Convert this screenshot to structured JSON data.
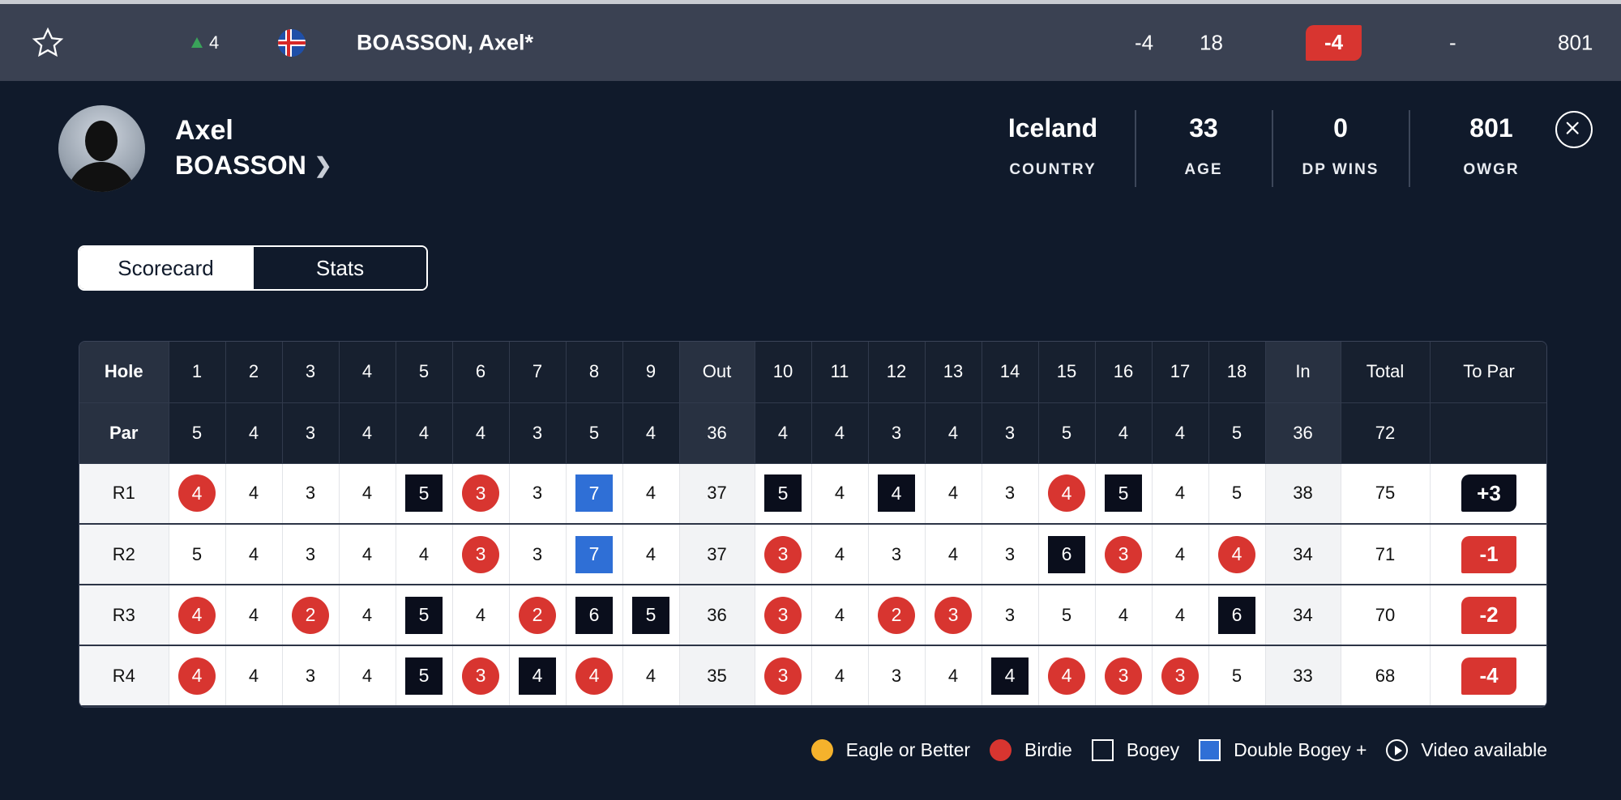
{
  "topbar": {
    "movement": "4",
    "player_name": "BOASSON, Axel*",
    "total_to_par": "-4",
    "thru": "18",
    "today": "-4",
    "round_dash": "-",
    "owgr": "801"
  },
  "profile": {
    "first_name": "Axel",
    "last_name": "BOASSON",
    "stats": [
      {
        "value": "Iceland",
        "label": "COUNTRY"
      },
      {
        "value": "33",
        "label": "AGE"
      },
      {
        "value": "0",
        "label": "DP WINS"
      },
      {
        "value": "801",
        "label": "OWGR"
      }
    ]
  },
  "tabs": {
    "scorecard": "Scorecard",
    "stats": "Stats"
  },
  "scorecard": {
    "headers": [
      "Hole",
      "1",
      "2",
      "3",
      "4",
      "5",
      "6",
      "7",
      "8",
      "9",
      "Out",
      "10",
      "11",
      "12",
      "13",
      "14",
      "15",
      "16",
      "17",
      "18",
      "In",
      "Total",
      "To Par"
    ],
    "par": [
      "Par",
      "5",
      "4",
      "3",
      "4",
      "4",
      "4",
      "3",
      "5",
      "4",
      "36",
      "4",
      "4",
      "3",
      "4",
      "3",
      "5",
      "4",
      "4",
      "5",
      "36",
      "72",
      ""
    ],
    "rounds": [
      {
        "label": "R1",
        "holes": [
          [
            "4",
            "birdie"
          ],
          [
            "4",
            ""
          ],
          [
            "3",
            ""
          ],
          [
            "4",
            ""
          ],
          [
            "5",
            "bogey"
          ],
          [
            "3",
            "birdie"
          ],
          [
            "3",
            ""
          ],
          [
            "7",
            "dbl"
          ],
          [
            "4",
            ""
          ],
          [
            "37",
            "sub"
          ],
          [
            "5",
            "bogey"
          ],
          [
            "4",
            ""
          ],
          [
            "4",
            "bogey"
          ],
          [
            "4",
            ""
          ],
          [
            "3",
            ""
          ],
          [
            "4",
            "birdie"
          ],
          [
            "5",
            "bogey"
          ],
          [
            "4",
            ""
          ],
          [
            "5",
            ""
          ],
          [
            "38",
            "sub"
          ],
          [
            "75",
            ""
          ]
        ],
        "to_par": "+3",
        "to_par_type": "over"
      },
      {
        "label": "R2",
        "holes": [
          [
            "5",
            ""
          ],
          [
            "4",
            ""
          ],
          [
            "3",
            ""
          ],
          [
            "4",
            ""
          ],
          [
            "4",
            ""
          ],
          [
            "3",
            "birdie"
          ],
          [
            "3",
            ""
          ],
          [
            "7",
            "dbl"
          ],
          [
            "4",
            ""
          ],
          [
            "37",
            "sub"
          ],
          [
            "3",
            "birdie"
          ],
          [
            "4",
            ""
          ],
          [
            "3",
            ""
          ],
          [
            "4",
            ""
          ],
          [
            "3",
            ""
          ],
          [
            "6",
            "bogey"
          ],
          [
            "3",
            "birdie"
          ],
          [
            "4",
            ""
          ],
          [
            "4",
            "birdie"
          ],
          [
            "34",
            "sub"
          ],
          [
            "71",
            ""
          ]
        ],
        "to_par": "-1",
        "to_par_type": "under"
      },
      {
        "label": "R3",
        "holes": [
          [
            "4",
            "birdie"
          ],
          [
            "4",
            ""
          ],
          [
            "2",
            "birdie"
          ],
          [
            "4",
            ""
          ],
          [
            "5",
            "bogey"
          ],
          [
            "4",
            ""
          ],
          [
            "2",
            "birdie"
          ],
          [
            "6",
            "bogey"
          ],
          [
            "5",
            "bogey"
          ],
          [
            "36",
            "sub"
          ],
          [
            "3",
            "birdie"
          ],
          [
            "4",
            ""
          ],
          [
            "2",
            "birdie"
          ],
          [
            "3",
            "birdie"
          ],
          [
            "3",
            ""
          ],
          [
            "5",
            ""
          ],
          [
            "4",
            ""
          ],
          [
            "4",
            ""
          ],
          [
            "6",
            "bogey"
          ],
          [
            "34",
            "sub"
          ],
          [
            "70",
            ""
          ]
        ],
        "to_par": "-2",
        "to_par_type": "under"
      },
      {
        "label": "R4",
        "holes": [
          [
            "4",
            "birdie"
          ],
          [
            "4",
            ""
          ],
          [
            "3",
            ""
          ],
          [
            "4",
            ""
          ],
          [
            "5",
            "bogey"
          ],
          [
            "3",
            "birdie"
          ],
          [
            "4",
            "bogey"
          ],
          [
            "4",
            "birdie"
          ],
          [
            "4",
            ""
          ],
          [
            "35",
            "sub"
          ],
          [
            "3",
            "birdie"
          ],
          [
            "4",
            ""
          ],
          [
            "3",
            ""
          ],
          [
            "4",
            ""
          ],
          [
            "4",
            "bogey"
          ],
          [
            "4",
            "birdie"
          ],
          [
            "3",
            "birdie"
          ],
          [
            "3",
            "birdie"
          ],
          [
            "5",
            ""
          ],
          [
            "33",
            "sub"
          ],
          [
            "68",
            ""
          ]
        ],
        "to_par": "-4",
        "to_par_type": "under"
      }
    ]
  },
  "legend": [
    "Eagle or Better",
    "Birdie",
    "Bogey",
    "Double Bogey +",
    "Video available"
  ],
  "colors": {
    "birdie": "#d83530",
    "bogey": "#0a0e1c",
    "double_bogey": "#2f6fd6",
    "eagle": "#f5b22c",
    "background": "#101a2b"
  }
}
